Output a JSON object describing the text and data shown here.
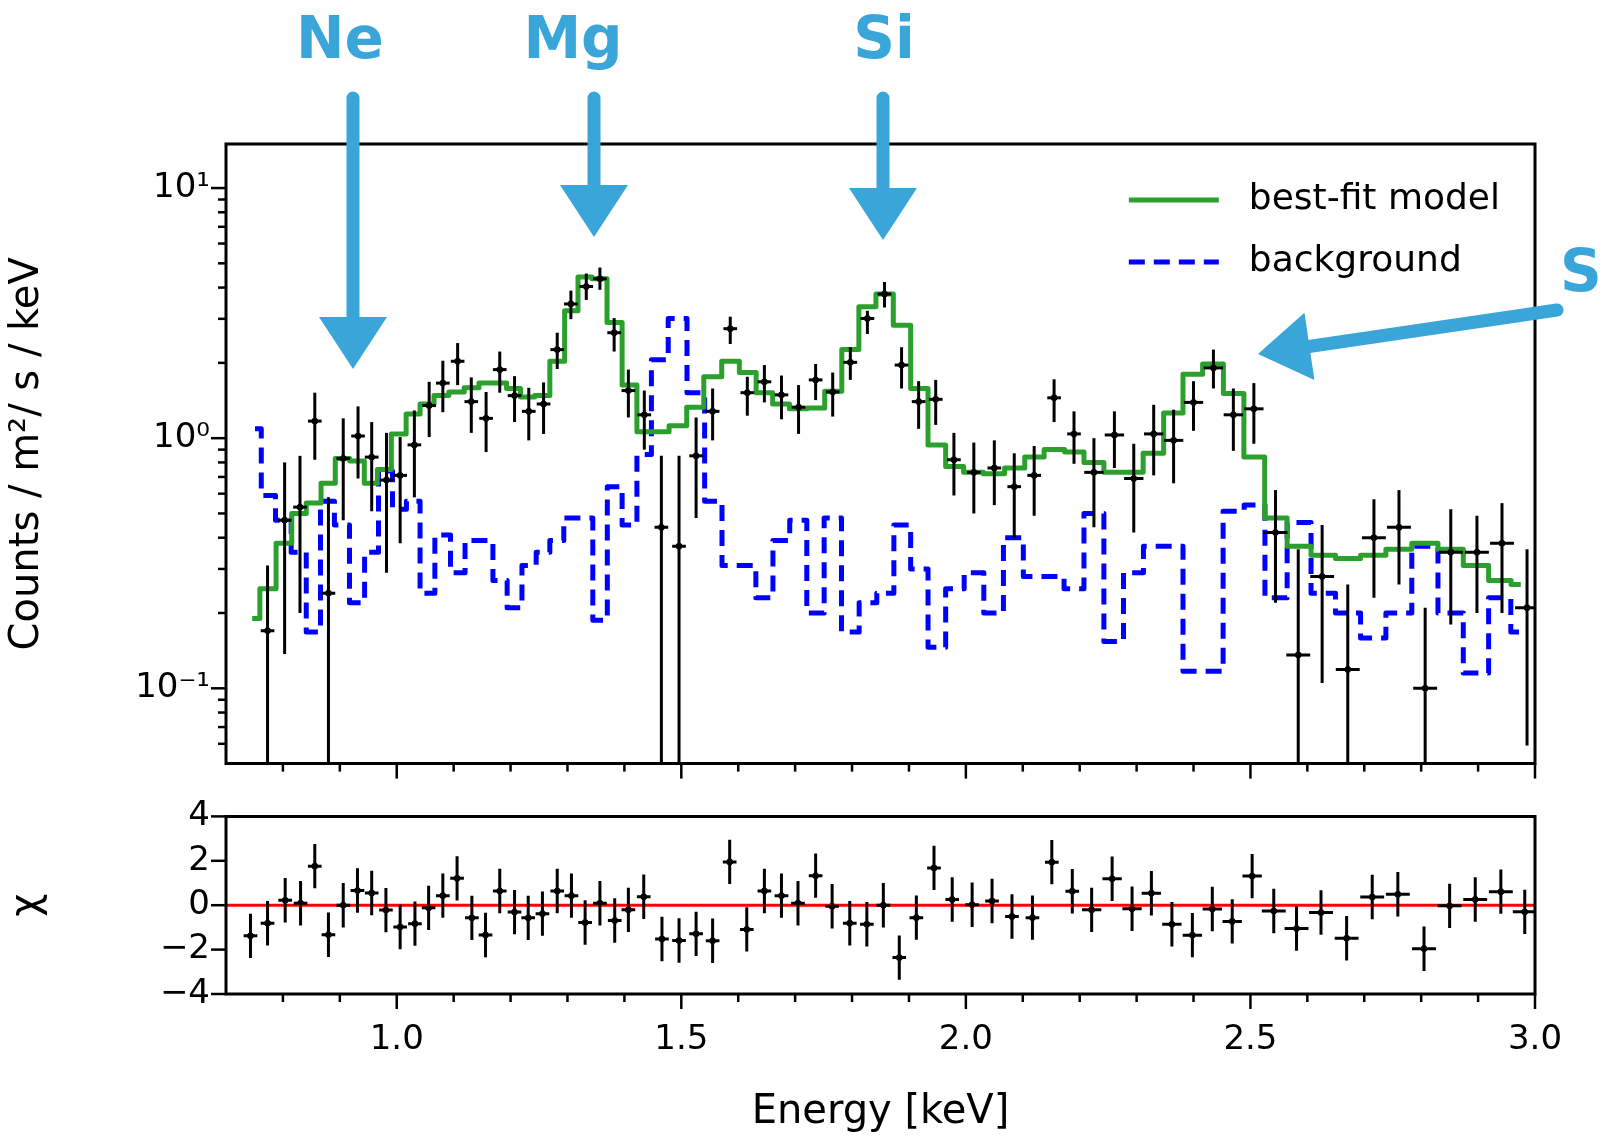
{
  "chart_data": [
    {
      "type": "step",
      "ylabel": "Counts / m²/ s / keV",
      "xlim": [
        0.7,
        3.0
      ],
      "ylim": [
        0.05,
        15
      ],
      "log": true,
      "tick_labels": "y",
      "legend": "top right",
      "xticks": [
        {
          "value": 0.8,
          "label": null
        },
        {
          "value": 0.9,
          "label": null
        },
        1,
        {
          "value": 1.1,
          "label": null
        },
        {
          "value": 1.2,
          "label": null
        },
        {
          "value": 1.3,
          "label": null
        },
        {
          "value": 1.4,
          "label": null
        },
        1.5,
        {
          "value": 1.6,
          "label": null
        },
        {
          "value": 1.7,
          "label": null
        },
        {
          "value": 1.8,
          "label": null
        },
        {
          "value": 1.9,
          "label": null
        },
        2,
        {
          "value": 2.1,
          "label": null
        },
        {
          "value": 2.2,
          "label": null
        },
        {
          "value": 2.3,
          "label": null
        },
        {
          "value": 2.4,
          "label": null
        },
        2.5,
        {
          "value": 2.6,
          "label": null
        },
        {
          "value": 2.7,
          "label": null
        },
        {
          "value": 2.8,
          "label": null
        },
        {
          "value": 2.9,
          "label": null
        },
        3
      ],
      "yticks": [
        {
          "value": 0.06,
          "label": null
        },
        {
          "value": 0.07,
          "label": null
        },
        {
          "value": 0.08,
          "label": null
        },
        {
          "value": 0.09,
          "label": null
        },
        {
          "value": 0.1,
          "label": "10⁻¹"
        },
        {
          "value": 0.2,
          "label": null
        },
        {
          "value": 0.3,
          "label": null
        },
        {
          "value": 0.4,
          "label": null
        },
        {
          "value": 0.5,
          "label": null
        },
        {
          "value": 0.6,
          "label": null
        },
        {
          "value": 0.7,
          "label": null
        },
        {
          "value": 0.8,
          "label": null
        },
        {
          "value": 0.9,
          "label": null
        },
        {
          "value": 1,
          "label": "10⁰"
        },
        {
          "value": 2,
          "label": null
        },
        {
          "value": 3,
          "label": null
        },
        {
          "value": 4,
          "label": null
        },
        {
          "value": 5,
          "label": null
        },
        {
          "value": 6,
          "label": null
        },
        {
          "value": 7,
          "label": null
        },
        {
          "value": 8,
          "label": null
        },
        {
          "value": 9,
          "label": null
        },
        {
          "value": 10,
          "label": "10¹"
        }
      ],
      "annotations": [
        "Ne",
        "Mg",
        "Si",
        "S"
      ],
      "series": [
        {
          "name": "best-fit model",
          "type": "step",
          "color": "#2ca02c",
          "x": [
            0.746,
            0.773,
            0.803,
            0.828,
            0.854,
            0.88,
            0.904,
            0.931,
            0.955,
            0.977,
            1.004,
            1.029,
            1.053,
            1.078,
            1.105,
            1.132,
            1.157,
            1.181,
            1.205,
            1.23,
            1.255,
            1.283,
            1.307,
            1.33,
            1.356,
            1.383,
            1.409,
            1.435,
            1.462,
            1.495,
            1.524,
            1.555,
            1.587,
            1.617,
            1.646,
            1.675,
            1.705,
            1.737,
            1.767,
            1.797,
            1.827,
            1.857,
            1.888,
            1.918,
            1.949,
            1.98,
            2.012,
            2.049,
            2.087,
            2.12,
            2.155,
            2.192,
            2.223,
            2.262,
            2.293,
            2.33,
            2.365,
            2.398,
            2.434,
            2.471,
            2.506,
            2.544,
            2.585,
            2.628,
            2.671,
            2.716,
            2.76,
            2.807,
            2.852,
            2.896,
            2.941,
            2.975
          ],
          "values": [
            0.19,
            0.25,
            0.38,
            0.5,
            0.55,
            0.66,
            0.83,
            0.81,
            0.66,
            0.75,
            1.04,
            1.25,
            1.37,
            1.48,
            1.53,
            1.59,
            1.66,
            1.66,
            1.58,
            1.46,
            1.48,
            2.03,
            3.23,
            4.41,
            4.34,
            2.9,
            1.63,
            1.06,
            1.06,
            1.12,
            1.33,
            1.76,
            2.03,
            1.83,
            1.52,
            1.37,
            1.31,
            1.32,
            1.54,
            2.26,
            3.35,
            3.77,
            2.83,
            1.58,
            0.94,
            0.77,
            0.73,
            0.72,
            0.76,
            0.84,
            0.9,
            0.88,
            0.8,
            0.73,
            0.73,
            0.87,
            1.26,
            1.8,
            1.98,
            1.51,
            0.84,
            0.48,
            0.37,
            0.34,
            0.33,
            0.34,
            0.36,
            0.38,
            0.36,
            0.31,
            0.27,
            0.26
          ]
        },
        {
          "name": "background",
          "type": "step",
          "line_style": "dashed",
          "color": "#0000ff",
          "x": [
            0.751,
            0.773,
            0.801,
            0.828,
            0.854,
            0.878,
            0.903,
            0.931,
            0.956,
            0.98,
            1.005,
            1.029,
            1.053,
            1.081,
            1.108,
            1.132,
            1.157,
            1.181,
            1.207,
            1.233,
            1.257,
            1.281,
            1.306,
            1.332,
            1.357,
            1.383,
            1.409,
            1.435,
            1.46,
            1.494,
            1.526,
            1.556,
            1.587,
            1.616,
            1.646,
            1.676,
            1.705,
            1.736,
            1.766,
            1.797,
            1.828,
            1.859,
            1.888,
            1.918,
            1.949,
            1.98,
            2.014,
            2.049,
            2.083,
            2.119,
            2.155,
            2.19,
            2.225,
            2.26,
            2.294,
            2.33,
            2.363,
            2.4,
            2.433,
            2.471,
            2.507,
            2.544,
            2.585,
            2.628,
            2.671,
            2.716,
            2.76,
            2.807,
            2.852,
            2.896,
            2.941,
            2.974
          ],
          "values": [
            1.09,
            0.59,
            0.47,
            0.35,
            0.168,
            0.56,
            0.45,
            0.22,
            0.35,
            0.74,
            0.52,
            0.56,
            0.24,
            0.41,
            0.29,
            0.39,
            0.39,
            0.27,
            0.21,
            0.31,
            0.35,
            0.39,
            0.48,
            0.48,
            0.187,
            0.64,
            0.45,
            0.86,
            2.06,
            3.01,
            1.52,
            0.56,
            0.31,
            0.31,
            0.23,
            0.39,
            0.47,
            0.2,
            0.48,
            0.168,
            0.22,
            0.24,
            0.45,
            0.3,
            0.146,
            0.25,
            0.29,
            0.2,
            0.4,
            0.28,
            0.28,
            0.25,
            0.5,
            0.154,
            0.29,
            0.37,
            0.37,
            0.117,
            0.117,
            0.51,
            0.54,
            0.23,
            0.46,
            0.24,
            0.2,
            0.159,
            0.2,
            0.37,
            0.2,
            0.115,
            0.23,
            0.168
          ]
        },
        {
          "type": "scatter",
          "color": "#000000",
          "x": [
            0.773,
            0.803,
            0.83,
            0.856,
            0.88,
            0.906,
            0.932,
            0.956,
            0.982,
            1.006,
            1.031,
            1.057,
            1.081,
            1.107,
            1.131,
            1.157,
            1.181,
            1.207,
            1.232,
            1.258,
            1.282,
            1.306,
            1.333,
            1.357,
            1.382,
            1.407,
            1.435,
            1.465,
            1.496,
            1.526,
            1.555,
            1.586,
            1.616,
            1.646,
            1.676,
            1.706,
            1.736,
            1.766,
            1.797,
            1.827,
            1.857,
            1.887,
            1.917,
            1.947,
            1.979,
            2.014,
            2.05,
            2.085,
            2.12,
            2.155,
            2.19,
            2.225,
            2.261,
            2.295,
            2.33,
            2.365,
            2.4,
            2.435,
            2.47,
            2.506,
            2.544,
            2.584,
            2.626,
            2.671,
            2.717,
            2.761,
            2.807,
            2.852,
            2.898,
            2.942,
            2.986
          ],
          "values": [
            0.17,
            0.47,
            0.53,
            1.17,
            0.24,
            0.83,
            1.02,
            0.84,
            0.68,
            0.71,
            0.94,
            1.35,
            1.66,
            2.03,
            1.4,
            1.2,
            1.88,
            1.48,
            1.28,
            1.37,
            2.26,
            3.44,
            4.04,
            4.34,
            2.64,
            1.55,
            1.24,
            0.44,
            0.37,
            0.85,
            1.28,
            2.74,
            1.52,
            1.68,
            1.49,
            1.33,
            1.71,
            1.53,
            2.01,
            3.01,
            3.77,
            1.96,
            1.4,
            1.43,
            0.82,
            0.73,
            0.76,
            0.64,
            0.71,
            1.45,
            1.04,
            0.73,
            1.03,
            0.69,
            1.04,
            0.98,
            1.39,
            1.91,
            1.24,
            1.31,
            0.42,
            0.136,
            0.28,
            0.119,
            0.4,
            0.44,
            0.1,
            0.35,
            0.35,
            0.38,
            0.21
          ],
          "errors": [
            [
              0.05,
              0.31
            ],
            [
              0.137,
              0.8
            ],
            [
              0.2,
              0.85
            ],
            [
              0.82,
              1.52
            ],
            [
              0.05,
              0.58
            ],
            [
              0.47,
              1.2
            ],
            [
              0.69,
              1.34
            ],
            [
              0.51,
              1.16
            ],
            [
              0.29,
              1.05
            ],
            [
              0.38,
              1.01
            ],
            [
              0.58,
              1.29
            ],
            [
              1.01,
              1.68
            ],
            [
              1.27,
              2.04
            ],
            [
              1.63,
              2.4
            ],
            [
              1.05,
              1.75
            ],
            [
              0.88,
              1.53
            ],
            [
              1.52,
              2.22
            ],
            [
              1.16,
              1.77
            ],
            [
              0.98,
              1.59
            ],
            [
              1.04,
              1.67
            ],
            [
              1.89,
              2.64
            ],
            [
              2.99,
              3.89
            ],
            [
              3.57,
              4.55
            ],
            [
              3.92,
              4.81
            ],
            [
              2.22,
              3.02
            ],
            [
              1.21,
              1.88
            ],
            [
              0.9,
              1.55
            ],
            [
              0.05,
              0.85
            ],
            [
              0.05,
              0.85
            ],
            [
              0.48,
              1.21
            ],
            [
              0.98,
              1.58
            ],
            [
              2.38,
              3.06
            ],
            [
              1.23,
              1.76
            ],
            [
              1.39,
              1.96
            ],
            [
              1.19,
              1.78
            ],
            [
              1.04,
              1.63
            ],
            [
              1.42,
              1.98
            ],
            [
              1.22,
              1.83
            ],
            [
              1.71,
              2.31
            ],
            [
              2.61,
              3.23
            ],
            [
              3.33,
              4.21
            ],
            [
              1.58,
              2.31
            ],
            [
              1.09,
              1.69
            ],
            [
              1.13,
              1.71
            ],
            [
              0.59,
              1.05
            ],
            [
              0.5,
              0.96
            ],
            [
              0.54,
              0.98
            ],
            [
              0.4,
              0.87
            ],
            [
              0.49,
              0.93
            ],
            [
              1.16,
              1.72
            ],
            [
              0.79,
              1.28
            ],
            [
              0.44,
              1.0
            ],
            [
              0.76,
              1.28
            ],
            [
              0.42,
              0.95
            ],
            [
              0.71,
              1.36
            ],
            [
              0.66,
              1.3
            ],
            [
              1.07,
              1.69
            ],
            [
              1.58,
              2.26
            ],
            [
              0.89,
              1.58
            ],
            [
              0.95,
              1.66
            ],
            [
              0.22,
              0.62
            ],
            [
              0.05,
              0.36
            ],
            [
              0.105,
              0.45
            ],
            [
              0.05,
              0.26
            ],
            [
              0.23,
              0.57
            ],
            [
              0.26,
              0.62
            ],
            [
              0.05,
              0.21
            ],
            [
              0.18,
              0.52
            ],
            [
              0.2,
              0.49
            ],
            [
              0.2,
              0.55
            ],
            [
              0.059,
              0.36
            ]
          ],
          "xerrors": [
            0.012,
            0.012,
            0.012,
            0.012,
            0.012,
            0.012,
            0.012,
            0.012,
            0.012,
            0.012,
            0.012,
            0.012,
            0.012,
            0.012,
            0.012,
            0.012,
            0.012,
            0.012,
            0.012,
            0.012,
            0.012,
            0.012,
            0.012,
            0.012,
            0.012,
            0.012,
            0.012,
            0.012,
            0.012,
            0.012,
            0.012,
            0.012,
            0.012,
            0.012,
            0.012,
            0.012,
            0.012,
            0.012,
            0.012,
            0.012,
            0.012,
            0.012,
            0.012,
            0.012,
            0.012,
            0.012,
            0.012,
            0.012,
            0.012,
            0.012,
            0.012,
            0.017,
            0.017,
            0.017,
            0.017,
            0.017,
            0.017,
            0.017,
            0.017,
            0.017,
            0.021,
            0.021,
            0.021,
            0.021,
            0.021,
            0.021,
            0.021,
            0.021,
            0.021,
            0.021,
            0.021
          ]
        }
      ]
    },
    {
      "type": "scatter",
      "xlabel": "Energy [keV]",
      "ylabel": "χ",
      "xlim": [
        0.7,
        3.0
      ],
      "ylim": [
        -4,
        4
      ],
      "color": "#000000",
      "xticks": [
        {
          "value": 0.8,
          "label": null
        },
        {
          "value": 0.9,
          "label": null
        },
        {
          "value": 1.0,
          "label": "1.0"
        },
        {
          "value": 1.1,
          "label": null
        },
        {
          "value": 1.2,
          "label": null
        },
        {
          "value": 1.3,
          "label": null
        },
        {
          "value": 1.4,
          "label": null
        },
        {
          "value": 1.5,
          "label": "1.5"
        },
        {
          "value": 1.6,
          "label": null
        },
        {
          "value": 1.7,
          "label": null
        },
        {
          "value": 1.8,
          "label": null
        },
        {
          "value": 1.9,
          "label": null
        },
        {
          "value": 2.0,
          "label": "2.0"
        },
        {
          "value": 2.1,
          "label": null
        },
        {
          "value": 2.2,
          "label": null
        },
        {
          "value": 2.3,
          "label": null
        },
        {
          "value": 2.4,
          "label": null
        },
        {
          "value": 2.5,
          "label": "2.5"
        },
        {
          "value": 2.6,
          "label": null
        },
        {
          "value": 2.7,
          "label": null
        },
        {
          "value": 2.8,
          "label": null
        },
        {
          "value": 2.9,
          "label": null
        },
        {
          "value": 3.0,
          "label": "3.0"
        }
      ],
      "yticks": [
        {
          "value": -4,
          "label": "−4"
        },
        {
          "value": -2,
          "label": "−2"
        },
        0,
        2,
        4
      ],
      "ref_lines": [
        {
          "axis": "y",
          "value": 0,
          "color": "#ff0000"
        }
      ],
      "x": [
        0.743,
        0.773,
        0.804,
        0.831,
        0.856,
        0.88,
        0.906,
        0.931,
        0.956,
        0.981,
        1.006,
        1.032,
        1.056,
        1.081,
        1.106,
        1.132,
        1.156,
        1.181,
        1.207,
        1.231,
        1.256,
        1.282,
        1.307,
        1.331,
        1.357,
        1.383,
        1.407,
        1.434,
        1.466,
        1.496,
        1.526,
        1.555,
        1.585,
        1.615,
        1.646,
        1.676,
        1.705,
        1.736,
        1.765,
        1.796,
        1.826,
        1.855,
        1.883,
        1.913,
        1.944,
        1.976,
        2.011,
        2.046,
        2.081,
        2.117,
        2.151,
        2.187,
        2.221,
        2.257,
        2.292,
        2.326,
        2.362,
        2.398,
        2.433,
        2.468,
        2.503,
        2.541,
        2.581,
        2.624,
        2.669,
        2.714,
        2.759,
        2.805,
        2.85,
        2.895,
        2.94,
        2.982
      ],
      "values": [
        -1.38,
        -0.81,
        0.22,
        0.09,
        1.76,
        -1.33,
        0.0,
        0.66,
        0.55,
        -0.22,
        -0.98,
        -0.83,
        -0.12,
        0.43,
        1.21,
        -0.57,
        -1.34,
        0.64,
        -0.31,
        -0.57,
        -0.38,
        0.64,
        0.43,
        -0.78,
        0.09,
        -0.69,
        -0.21,
        0.38,
        -1.52,
        -1.59,
        -1.29,
        -1.6,
        1.95,
        -1.09,
        0.64,
        0.43,
        0.09,
        1.33,
        -0.05,
        -0.81,
        -0.86,
        0.0,
        -2.36,
        -0.56,
        1.68,
        0.26,
        0.02,
        0.19,
        -0.51,
        -0.56,
        1.94,
        0.63,
        -0.21,
        1.19,
        -0.16,
        0.54,
        -0.86,
        -1.35,
        -0.17,
        -0.73,
        1.31,
        -0.26,
        -1.05,
        -0.33,
        -1.49,
        0.37,
        0.49,
        -1.96,
        -0.03,
        0.26,
        0.61,
        -0.3
      ],
      "errors": [
        1,
        1,
        1,
        1,
        1,
        1,
        1,
        1,
        1,
        1,
        1,
        1,
        1,
        1,
        1,
        1,
        1,
        1,
        1,
        1,
        1,
        1,
        1,
        1,
        1,
        1,
        1,
        1,
        1,
        1,
        1,
        1,
        1,
        1,
        1,
        1,
        1,
        1,
        1,
        1,
        1,
        1,
        1,
        1,
        1,
        1,
        1,
        1,
        1,
        1,
        1,
        1,
        1,
        1,
        1,
        1,
        1,
        1,
        1,
        1,
        1,
        1,
        1,
        1,
        1,
        1,
        1,
        1,
        1,
        1,
        1,
        1
      ],
      "xerrors": [
        0.012,
        0.012,
        0.012,
        0.012,
        0.012,
        0.012,
        0.012,
        0.012,
        0.012,
        0.012,
        0.012,
        0.012,
        0.012,
        0.012,
        0.012,
        0.012,
        0.012,
        0.012,
        0.012,
        0.012,
        0.012,
        0.012,
        0.012,
        0.012,
        0.012,
        0.012,
        0.012,
        0.012,
        0.012,
        0.012,
        0.012,
        0.012,
        0.012,
        0.012,
        0.012,
        0.012,
        0.012,
        0.012,
        0.012,
        0.012,
        0.012,
        0.012,
        0.012,
        0.012,
        0.012,
        0.012,
        0.012,
        0.012,
        0.012,
        0.012,
        0.012,
        0.012,
        0.017,
        0.017,
        0.017,
        0.017,
        0.017,
        0.017,
        0.017,
        0.017,
        0.017,
        0.021,
        0.021,
        0.021,
        0.021,
        0.021,
        0.021,
        0.021,
        0.021,
        0.021,
        0.021,
        0.021
      ]
    }
  ]
}
